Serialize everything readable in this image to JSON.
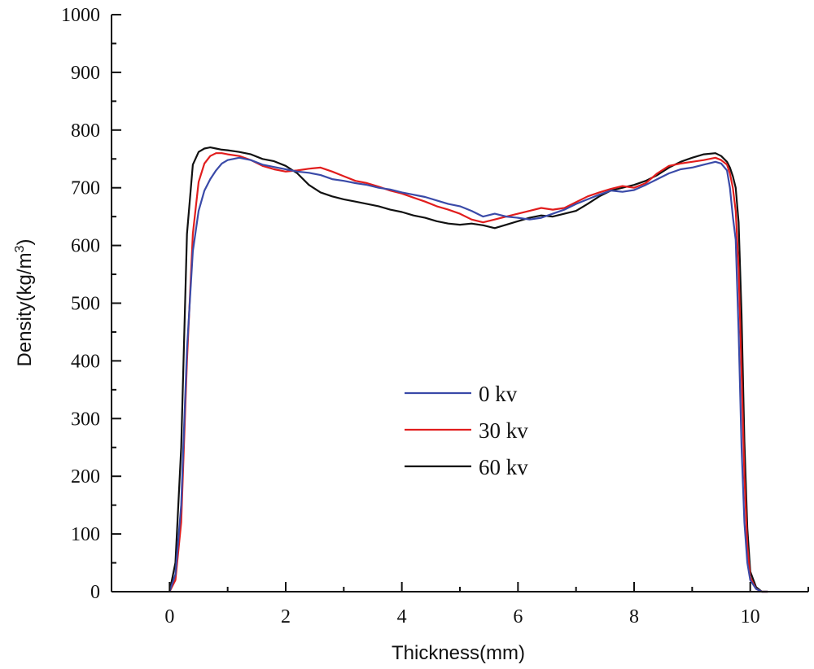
{
  "chart_data": {
    "type": "line",
    "title": "",
    "xlabel": "Thickness(mm)",
    "ylabel": "Density(kg/m3)",
    "ylabel_base": "Density(kg/m",
    "ylabel_sup": "3",
    "ylabel_close": ")",
    "xlim": [
      -1,
      11
    ],
    "ylim": [
      0,
      1000
    ],
    "xticks": [
      0,
      2,
      4,
      6,
      8,
      10
    ],
    "yticks": [
      0,
      100,
      200,
      300,
      400,
      500,
      600,
      700,
      800,
      900,
      1000
    ],
    "xticklabels": [
      "0",
      "2",
      "4",
      "6",
      "8",
      "10"
    ],
    "yticklabels": [
      "0",
      "100",
      "200",
      "300",
      "400",
      "500",
      "600",
      "700",
      "800",
      "900",
      "1000"
    ],
    "legend_position": "center",
    "series": [
      {
        "name": "0 kv",
        "color": "#3a4aa8",
        "x": [
          0.0,
          0.1,
          0.2,
          0.3,
          0.4,
          0.5,
          0.6,
          0.7,
          0.8,
          0.9,
          1.0,
          1.2,
          1.4,
          1.6,
          1.8,
          2.0,
          2.2,
          2.4,
          2.6,
          2.8,
          3.0,
          3.2,
          3.4,
          3.6,
          3.8,
          4.0,
          4.2,
          4.4,
          4.6,
          4.8,
          5.0,
          5.2,
          5.4,
          5.6,
          5.8,
          6.0,
          6.2,
          6.4,
          6.6,
          6.8,
          7.0,
          7.2,
          7.4,
          7.6,
          7.8,
          8.0,
          8.2,
          8.4,
          8.6,
          8.8,
          9.0,
          9.2,
          9.4,
          9.5,
          9.6,
          9.65,
          9.7,
          9.75,
          9.8,
          9.85,
          9.9,
          9.95,
          10.0,
          10.1,
          10.2,
          10.3
        ],
        "y": [
          0,
          30,
          150,
          420,
          590,
          660,
          695,
          715,
          730,
          742,
          748,
          752,
          748,
          740,
          736,
          732,
          728,
          726,
          722,
          715,
          712,
          708,
          705,
          700,
          697,
          692,
          688,
          684,
          678,
          672,
          668,
          660,
          650,
          655,
          650,
          648,
          645,
          648,
          655,
          662,
          672,
          680,
          688,
          695,
          693,
          696,
          705,
          715,
          725,
          732,
          735,
          740,
          745,
          742,
          730,
          700,
          650,
          610,
          450,
          250,
          120,
          50,
          20,
          5,
          0,
          0
        ]
      },
      {
        "name": "30 kv",
        "color": "#e11d1d",
        "x": [
          0.0,
          0.1,
          0.2,
          0.3,
          0.4,
          0.5,
          0.6,
          0.7,
          0.8,
          0.9,
          1.0,
          1.2,
          1.4,
          1.6,
          1.8,
          2.0,
          2.2,
          2.4,
          2.6,
          2.8,
          3.0,
          3.2,
          3.4,
          3.6,
          3.8,
          4.0,
          4.2,
          4.4,
          4.6,
          4.8,
          5.0,
          5.2,
          5.4,
          5.6,
          5.8,
          6.0,
          6.2,
          6.4,
          6.6,
          6.8,
          7.0,
          7.2,
          7.4,
          7.6,
          7.8,
          8.0,
          8.2,
          8.4,
          8.6,
          8.8,
          9.0,
          9.2,
          9.4,
          9.5,
          9.6,
          9.65,
          9.7,
          9.75,
          9.8,
          9.85,
          9.9,
          9.95,
          10.0,
          10.1,
          10.2,
          10.3
        ],
        "y": [
          0,
          20,
          120,
          400,
          620,
          710,
          742,
          755,
          760,
          760,
          758,
          755,
          748,
          738,
          732,
          728,
          730,
          733,
          735,
          728,
          720,
          712,
          708,
          702,
          695,
          690,
          683,
          676,
          668,
          662,
          655,
          645,
          640,
          645,
          650,
          655,
          660,
          665,
          662,
          665,
          675,
          685,
          692,
          698,
          703,
          700,
          708,
          725,
          738,
          742,
          745,
          748,
          752,
          748,
          740,
          725,
          700,
          660,
          560,
          380,
          200,
          80,
          25,
          5,
          0,
          0
        ]
      },
      {
        "name": "60 kv",
        "color": "#111111",
        "x": [
          0.0,
          0.1,
          0.2,
          0.3,
          0.4,
          0.5,
          0.6,
          0.7,
          0.8,
          0.9,
          1.0,
          1.2,
          1.4,
          1.6,
          1.8,
          2.0,
          2.2,
          2.4,
          2.6,
          2.8,
          3.0,
          3.2,
          3.4,
          3.6,
          3.8,
          4.0,
          4.2,
          4.4,
          4.6,
          4.8,
          5.0,
          5.2,
          5.4,
          5.6,
          5.8,
          6.0,
          6.2,
          6.4,
          6.6,
          6.8,
          7.0,
          7.2,
          7.4,
          7.6,
          7.8,
          8.0,
          8.2,
          8.4,
          8.6,
          8.8,
          9.0,
          9.2,
          9.4,
          9.5,
          9.6,
          9.65,
          9.7,
          9.75,
          9.8,
          9.85,
          9.9,
          9.95,
          10.0,
          10.1,
          10.2,
          10.3
        ],
        "y": [
          0,
          50,
          250,
          620,
          740,
          762,
          768,
          770,
          768,
          766,
          765,
          762,
          758,
          750,
          746,
          738,
          725,
          705,
          692,
          685,
          680,
          676,
          672,
          668,
          662,
          658,
          652,
          648,
          642,
          638,
          636,
          638,
          635,
          630,
          636,
          642,
          648,
          652,
          650,
          655,
          660,
          672,
          685,
          695,
          700,
          705,
          712,
          722,
          735,
          745,
          752,
          758,
          760,
          755,
          745,
          735,
          720,
          700,
          640,
          480,
          260,
          110,
          35,
          8,
          0,
          0
        ]
      }
    ]
  }
}
